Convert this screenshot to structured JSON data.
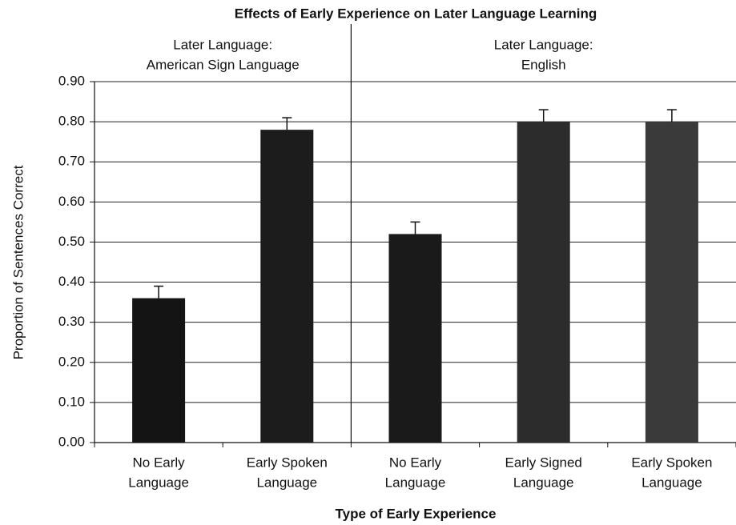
{
  "chart_data": {
    "type": "bar",
    "title": "Effects of Early Experience on Later Language Learning",
    "x_label": "Type of Early Experience",
    "y_label": "Proportion of Sentences Correct",
    "groups": [
      [
        "Later Language:",
        "American Sign Language"
      ],
      [
        "Later Language:",
        "English"
      ]
    ],
    "categories": [
      [
        "No Early",
        "Language"
      ],
      [
        "Early Spoken",
        "Language"
      ],
      [
        "No Early",
        "Language"
      ],
      [
        "Early Signed",
        "Language"
      ],
      [
        "Early Spoken",
        "Language"
      ]
    ],
    "series": [
      {
        "colors": [
          "#141414",
          "#1c1c1c",
          "#1a1a1a",
          "#2c2c2c",
          "#3a3a3a"
        ],
        "values": [
          0.36,
          0.78,
          0.52,
          0.8,
          0.8
        ],
        "errors": [
          0.03,
          0.03,
          0.03,
          0.03,
          0.03
        ]
      }
    ],
    "ylim": [
      0,
      0.9
    ],
    "yticks": [
      {
        "value": 0,
        "label": "0.00"
      },
      {
        "value": 0.1,
        "label": "0.10"
      },
      {
        "value": 0.2,
        "label": "0.20"
      },
      {
        "value": 0.3,
        "label": "0.30"
      },
      {
        "value": 0.4,
        "label": "0.40"
      },
      {
        "value": 0.5,
        "label": "0.50"
      },
      {
        "value": 0.6,
        "label": "0.60"
      },
      {
        "value": 0.7,
        "label": "0.70"
      },
      {
        "value": 0.8,
        "label": "0.80"
      },
      {
        "value": 0.9,
        "label": "0.90"
      }
    ],
    "grid": true
  }
}
